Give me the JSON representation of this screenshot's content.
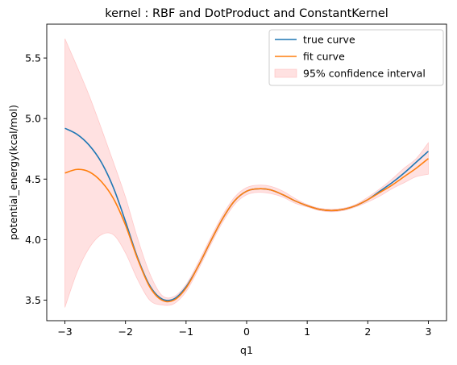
{
  "chart_data": {
    "type": "line",
    "title": "kernel : RBF and DotProduct and ConstantKernel",
    "xlabel": "q1",
    "ylabel": "potential_energy(kcal/mol)",
    "xlim": [
      -3.3,
      3.3
    ],
    "ylim": [
      3.33,
      5.78
    ],
    "xticks": [
      -3,
      -2,
      -1,
      0,
      1,
      2,
      3
    ],
    "xtick_labels": [
      "−3",
      "−2",
      "−1",
      "0",
      "1",
      "2",
      "3"
    ],
    "yticks": [
      3.5,
      4.0,
      4.5,
      5.0,
      5.5
    ],
    "ytick_labels": [
      "3.5",
      "4.0",
      "4.5",
      "5.0",
      "5.5"
    ],
    "grid": false,
    "legend_position": "top-right",
    "x": [
      -3.0,
      -2.8,
      -2.6,
      -2.4,
      -2.2,
      -2.0,
      -1.8,
      -1.6,
      -1.4,
      -1.2,
      -1.0,
      -0.8,
      -0.6,
      -0.4,
      -0.2,
      0.0,
      0.2,
      0.4,
      0.6,
      0.8,
      1.0,
      1.2,
      1.4,
      1.6,
      1.8,
      2.0,
      2.2,
      2.4,
      2.6,
      2.8,
      3.0
    ],
    "series": [
      {
        "name": "true curve",
        "color": "#1f77b4",
        "values": [
          4.92,
          4.87,
          4.78,
          4.64,
          4.43,
          4.15,
          3.85,
          3.62,
          3.51,
          3.51,
          3.61,
          3.78,
          3.98,
          4.17,
          4.32,
          4.4,
          4.42,
          4.41,
          4.37,
          4.32,
          4.28,
          4.25,
          4.24,
          4.25,
          4.28,
          4.33,
          4.4,
          4.47,
          4.55,
          4.64,
          4.73
        ]
      },
      {
        "name": "fit curve",
        "color": "#ff7f0e",
        "values": [
          4.55,
          4.58,
          4.56,
          4.48,
          4.34,
          4.12,
          3.84,
          3.61,
          3.5,
          3.5,
          3.6,
          3.78,
          3.98,
          4.17,
          4.32,
          4.4,
          4.42,
          4.41,
          4.37,
          4.32,
          4.28,
          4.25,
          4.24,
          4.25,
          4.28,
          4.33,
          4.39,
          4.45,
          4.52,
          4.59,
          4.67
        ]
      }
    ],
    "confidence_interval": {
      "name": "95% confidence interval",
      "color": "#ffb0b0",
      "lower": [
        3.44,
        3.73,
        3.93,
        4.04,
        4.04,
        3.89,
        3.67,
        3.5,
        3.46,
        3.47,
        3.57,
        3.75,
        3.95,
        4.14,
        4.29,
        4.37,
        4.39,
        4.38,
        4.35,
        4.3,
        4.27,
        4.24,
        4.23,
        4.24,
        4.27,
        4.31,
        4.36,
        4.42,
        4.47,
        4.52,
        4.54
      ],
      "upper": [
        5.66,
        5.43,
        5.19,
        4.92,
        4.64,
        4.35,
        4.01,
        3.72,
        3.54,
        3.53,
        3.63,
        3.81,
        4.01,
        4.2,
        4.35,
        4.43,
        4.45,
        4.44,
        4.4,
        4.34,
        4.29,
        4.26,
        4.25,
        4.26,
        4.29,
        4.35,
        4.42,
        4.5,
        4.59,
        4.67,
        4.8
      ]
    }
  }
}
